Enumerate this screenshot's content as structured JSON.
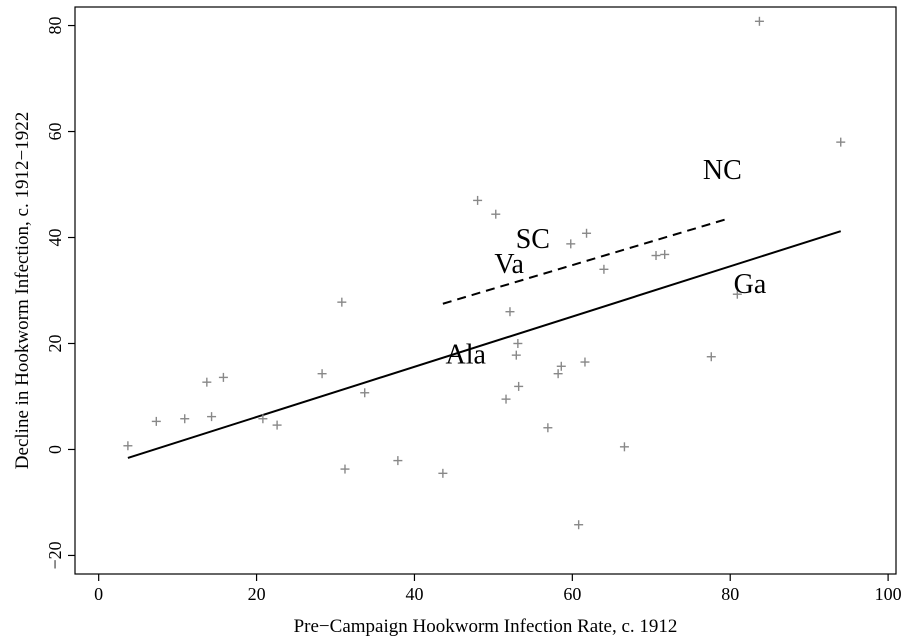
{
  "chart_data": {
    "type": "scatter",
    "title": "",
    "xlabel": "Pre−Campaign Hookworm Infection Rate, c. 1912",
    "ylabel": "Decline in Hookworm Infection, c. 1912−1922",
    "xlim": [
      -3,
      101
    ],
    "ylim": [
      -23.5,
      83.5
    ],
    "x_ticks": [
      0,
      20,
      40,
      60,
      80,
      100
    ],
    "x_tick_labels": [
      "0",
      "20",
      "40",
      "60",
      "80",
      "100"
    ],
    "y_ticks": [
      -20,
      0,
      20,
      40,
      60,
      80
    ],
    "y_tick_labels": [
      "−20",
      "0",
      "20",
      "40",
      "60",
      "80"
    ],
    "grid": false,
    "marker": "+",
    "marker_color": "#888888",
    "points": [
      {
        "x": 3.7,
        "y": 0.7
      },
      {
        "x": 7.3,
        "y": 5.3
      },
      {
        "x": 10.9,
        "y": 5.8
      },
      {
        "x": 13.7,
        "y": 12.7
      },
      {
        "x": 14.3,
        "y": 6.2
      },
      {
        "x": 15.8,
        "y": 13.6
      },
      {
        "x": 20.8,
        "y": 5.8
      },
      {
        "x": 22.6,
        "y": 4.6
      },
      {
        "x": 28.3,
        "y": 14.3
      },
      {
        "x": 30.8,
        "y": 27.8
      },
      {
        "x": 31.2,
        "y": -3.7
      },
      {
        "x": 33.7,
        "y": 10.7
      },
      {
        "x": 37.9,
        "y": -2.1
      },
      {
        "x": 43.6,
        "y": -4.5
      },
      {
        "x": 48.0,
        "y": 47.0
      },
      {
        "x": 50.3,
        "y": 44.4
      },
      {
        "x": 51.6,
        "y": 9.5
      },
      {
        "x": 52.1,
        "y": 26.0
      },
      {
        "x": 52.9,
        "y": 17.8
      },
      {
        "x": 53.1,
        "y": 20.0
      },
      {
        "x": 53.2,
        "y": 11.9
      },
      {
        "x": 56.9,
        "y": 4.1
      },
      {
        "x": 58.2,
        "y": 14.3
      },
      {
        "x": 58.6,
        "y": 15.7
      },
      {
        "x": 59.8,
        "y": 38.8
      },
      {
        "x": 60.8,
        "y": -14.2
      },
      {
        "x": 61.6,
        "y": 16.5
      },
      {
        "x": 61.8,
        "y": 40.8
      },
      {
        "x": 64.0,
        "y": 34.0
      },
      {
        "x": 66.6,
        "y": 0.5
      },
      {
        "x": 70.6,
        "y": 36.6
      },
      {
        "x": 71.7,
        "y": 36.8
      },
      {
        "x": 77.6,
        "y": 17.5
      },
      {
        "x": 80.9,
        "y": 29.3
      },
      {
        "x": 83.7,
        "y": 80.8
      },
      {
        "x": 94.0,
        "y": 58.0
      }
    ],
    "lines": [
      {
        "style": "solid",
        "x": [
          3.7,
          94.0
        ],
        "y": [
          -1.6,
          41.2
        ]
      },
      {
        "style": "dashed",
        "x": [
          43.6,
          79.6
        ],
        "y": [
          27.5,
          43.5
        ]
      }
    ],
    "annotations": [
      {
        "text": "NC",
        "x": 79.0,
        "y": 51.0
      },
      {
        "text": "SC",
        "x": 55.0,
        "y": 38.0
      },
      {
        "text": "Va",
        "x": 52.0,
        "y": 33.3
      },
      {
        "text": "Ga",
        "x": 82.5,
        "y": 29.5
      },
      {
        "text": "Ala",
        "x": 46.5,
        "y": 16.2
      }
    ]
  }
}
